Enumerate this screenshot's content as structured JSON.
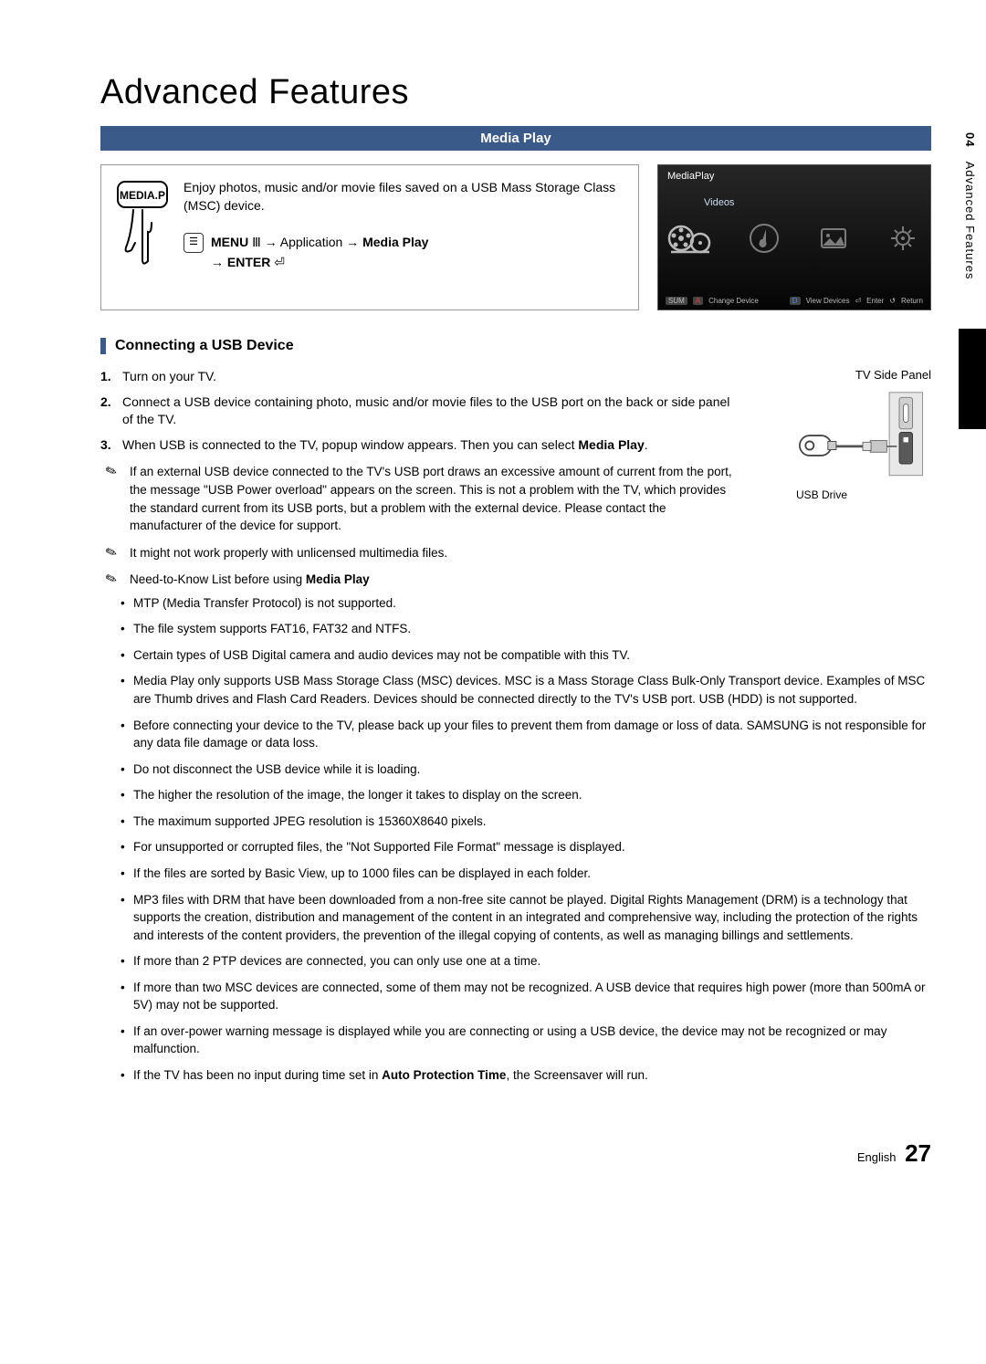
{
  "chapterTitle": "Advanced Features",
  "sideTab": {
    "num": "04",
    "label": "Advanced Features"
  },
  "banner": "Media Play",
  "intro": {
    "text": "Enjoy photos, music and/or movie files saved on a USB Mass Storage Class (MSC) device.",
    "remoteLabel": "MEDIA.P",
    "menuPath": "MENU Ⅳ → Application → Media Play → ENTER ⏎"
  },
  "screenshot": {
    "title": "MediaPlay",
    "category": "Videos",
    "footer": {
      "sum": "SUM",
      "changeDevice": "Change Device",
      "viewDevices": "View Devices",
      "enter": "Enter",
      "return": "Return",
      "aLabel": "A",
      "dLabel": "D",
      "enterIcon": "⏎",
      "returnIcon": "↺"
    }
  },
  "section1": {
    "heading": "Connecting a USB Device",
    "steps": [
      "Turn on your TV.",
      "Connect a USB device containing photo, music and/or movie files to the USB port on the back or side panel of the TV.",
      "When USB is connected to the TV, popup window appears. Then you can select Media Play."
    ],
    "stepBold": "Media Play",
    "sidePanelCaption": "TV Side Panel",
    "usbDriveLabel": "USB Drive"
  },
  "notes": [
    "If an external USB device connected to the TV's USB port draws an excessive amount of current from the port, the message \"USB Power overload\" appears on the screen. This is not a problem with the TV, which provides the standard current from its USB ports, but a problem with the external device. Please contact the manufacturer of the device for support.",
    "It might not work properly with unlicensed multimedia files.",
    "Need-to-Know List before using Media Play"
  ],
  "knowList": [
    "MTP (Media Transfer Protocol) is not supported.",
    "The file system supports FAT16, FAT32 and NTFS.",
    "Certain types of USB Digital camera and audio devices may not be compatible with this TV.",
    "Media Play only supports USB Mass Storage Class (MSC) devices. MSC is a Mass Storage Class Bulk-Only Transport device. Examples of MSC are Thumb drives and Flash Card Readers. Devices should be connected directly to the TV's USB port. USB (HDD) is not supported.",
    "Before connecting your device to the TV, please back up your files to prevent them from damage or loss of data. SAMSUNG is not responsible for any data file damage or data loss.",
    "Do not disconnect the USB device while it is loading.",
    "The higher the resolution of the image, the longer it takes to display on the screen.",
    "The maximum supported JPEG resolution is 15360X8640 pixels.",
    "For unsupported or corrupted files, the \"Not Supported File Format\" message is displayed.",
    "If the files are sorted by Basic View, up to 1000 files can be displayed in each folder.",
    "MP3 files with DRM that have been downloaded from a non-free site cannot be played. Digital Rights Management (DRM) is a technology that supports the creation, distribution and management of the content in an integrated and comprehensive way, including the protection of the rights and interests of the content providers, the prevention of the illegal copying of contents, as well as managing billings and settlements.",
    "If more than 2 PTP devices are connected, you can only use one at a time.",
    "If more than two MSC devices are connected, some of them may not be recognized. A USB device that requires high power (more than 500mA or 5V) may not be supported.",
    "If an over-power warning message is displayed while you are connecting or using a USB device, the device may not be recognized or may malfunction.",
    "If the TV has been no input during time set in Auto Protection Time, the Screensaver will run."
  ],
  "footer": {
    "lang": "English",
    "page": "27"
  },
  "colors": {
    "bannerBg": "#3a5a8a",
    "screenshotBg": "#121212",
    "reel": "#888"
  }
}
